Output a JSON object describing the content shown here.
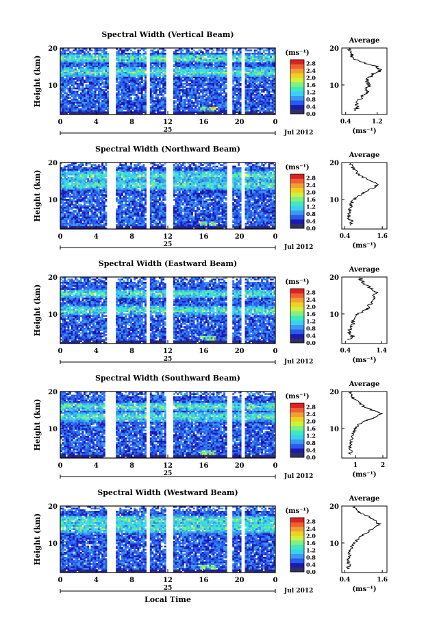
{
  "footer": {
    "xlabel": "Local Time"
  },
  "colorbar": {
    "unit": "(ms⁻¹)",
    "ticks": [
      "0.0",
      "0.4",
      "0.8",
      "1.2",
      "1.6",
      "2.0",
      "2.4",
      "2.8"
    ],
    "range": [
      0.0,
      3.0
    ],
    "colors": [
      "#303060",
      "#1a1ab0",
      "#2a5af0",
      "#3a9af0",
      "#3ad0f0",
      "#40e8c0",
      "#80f080",
      "#d0f040",
      "#f0d020",
      "#f0a030",
      "#f06030",
      "#e02020"
    ]
  },
  "chart_data": [
    {
      "type": "heatmap",
      "title": "Spectral Width (Vertical Beam)",
      "ylabel": "Height (km)",
      "yticks": [
        "20",
        "10"
      ],
      "xticks": [
        "0",
        "4",
        "8",
        "12",
        "16",
        "20",
        "0"
      ],
      "date_label": "25",
      "month_label": "Jul 2012",
      "xlim": [
        0,
        24
      ],
      "ylim": [
        2,
        20
      ],
      "data_gaps_hours": [
        [
          5.5,
          6.1
        ],
        [
          9.6,
          10.0
        ],
        [
          11.8,
          12.6
        ],
        [
          18.6,
          19.2
        ],
        [
          20.2,
          20.7
        ]
      ],
      "high_width_layers_km": [
        17.2,
        13.5
      ],
      "average_profile": {
        "title": "Average",
        "xlabel": "(ms⁻¹)",
        "xticks": [
          "0.4",
          "1.2"
        ],
        "xlim": [
          0.3,
          1.45
        ],
        "yticks": [
          "20",
          "10"
        ],
        "heights_km": [
          3,
          4,
          5,
          6,
          7,
          8,
          9,
          10,
          11,
          12,
          13,
          14,
          15,
          16,
          17,
          18,
          19,
          20
        ],
        "values": [
          0.62,
          0.72,
          0.68,
          0.75,
          0.82,
          0.95,
          0.88,
          1.02,
          0.92,
          0.98,
          1.12,
          1.3,
          1.18,
          0.85,
          0.62,
          0.55,
          0.5,
          0.5
        ]
      }
    },
    {
      "type": "heatmap",
      "title": "Spectral Width (Northward Beam)",
      "ylabel": "Height (km)",
      "yticks": [
        "20",
        "10"
      ],
      "xticks": [
        "0",
        "4",
        "8",
        "12",
        "16",
        "20",
        "0"
      ],
      "date_label": "25",
      "month_label": "Jul 2012",
      "xlim": [
        0,
        24
      ],
      "ylim": [
        2,
        20
      ],
      "data_gaps_hours": [
        [
          5.3,
          6.2
        ],
        [
          9.6,
          10.0
        ],
        [
          11.8,
          12.6
        ],
        [
          18.6,
          19.2
        ],
        [
          20.2,
          20.7
        ]
      ],
      "high_width_layers_km": [
        16.5,
        14.0
      ],
      "average_profile": {
        "title": "Average",
        "xlabel": "(ms⁻¹)",
        "xticks": [
          "0.4",
          "1.6"
        ],
        "xlim": [
          0.3,
          1.75
        ],
        "yticks": [
          "20",
          "10"
        ],
        "heights_km": [
          3,
          4,
          5,
          6,
          7,
          8,
          9,
          10,
          11,
          12,
          13,
          14,
          15,
          16,
          17,
          18,
          19,
          20
        ],
        "values": [
          0.55,
          0.65,
          0.5,
          0.52,
          0.55,
          0.58,
          0.62,
          0.7,
          0.85,
          1.05,
          1.3,
          1.45,
          1.25,
          1.0,
          0.82,
          0.72,
          0.62,
          0.6
        ]
      }
    },
    {
      "type": "heatmap",
      "title": "Spectral Width (Eastward Beam)",
      "ylabel": "Height (km)",
      "yticks": [
        "20",
        "10"
      ],
      "xticks": [
        "0",
        "4",
        "8",
        "12",
        "16",
        "20",
        "0"
      ],
      "date_label": "25",
      "month_label": "Jul 2012",
      "xlim": [
        0,
        24
      ],
      "ylim": [
        2,
        20
      ],
      "data_gaps_hours": [
        [
          5.3,
          6.1
        ],
        [
          9.6,
          10.0
        ],
        [
          11.8,
          12.6
        ],
        [
          18.6,
          19.2
        ],
        [
          20.2,
          20.7
        ]
      ],
      "high_width_layers_km": [
        15.5,
        11.0
      ],
      "average_profile": {
        "title": "Average",
        "xlabel": "(ms⁻¹)",
        "xticks": [
          "0.4",
          "1.4"
        ],
        "xlim": [
          0.3,
          1.55
        ],
        "yticks": [
          "20",
          "10"
        ],
        "heights_km": [
          3,
          4,
          5,
          6,
          7,
          8,
          9,
          10,
          11,
          12,
          13,
          14,
          15,
          16,
          17,
          18,
          19,
          20
        ],
        "values": [
          0.5,
          0.6,
          0.5,
          0.55,
          0.6,
          0.62,
          0.68,
          0.72,
          0.95,
          1.05,
          1.1,
          1.2,
          1.15,
          1.25,
          1.1,
          0.95,
          0.85,
          0.8
        ]
      }
    },
    {
      "type": "heatmap",
      "title": "Spectral Width (Southward Beam)",
      "ylabel": "Height (km)",
      "yticks": [
        "20",
        "10"
      ],
      "xticks": [
        "0",
        "4",
        "8",
        "12",
        "16",
        "20",
        "0"
      ],
      "date_label": "25",
      "month_label": "Jul 2012",
      "xlim": [
        0,
        24
      ],
      "ylim": [
        2,
        20
      ],
      "data_gaps_hours": [
        [
          5.0,
          6.2
        ],
        [
          9.6,
          10.0
        ],
        [
          11.8,
          12.6
        ],
        [
          18.6,
          19.2
        ],
        [
          20.2,
          20.7
        ]
      ],
      "high_width_layers_km": [
        16.0,
        13.2
      ],
      "average_profile": {
        "title": "Average",
        "xlabel": "(ms⁻¹)",
        "xticks": [
          "1",
          "2"
        ],
        "xlim": [
          0.5,
          2.15
        ],
        "yticks": [
          "20",
          "10"
        ],
        "heights_km": [
          3,
          4,
          5,
          6,
          7,
          8,
          9,
          10,
          11,
          12,
          13,
          14,
          15,
          16,
          17,
          18,
          19,
          20
        ],
        "values": [
          0.78,
          0.85,
          0.8,
          0.82,
          0.85,
          0.88,
          0.95,
          1.0,
          1.1,
          1.35,
          1.7,
          1.95,
          1.6,
          1.3,
          1.15,
          0.95,
          0.85,
          0.8
        ]
      }
    },
    {
      "type": "heatmap",
      "title": "Spectral Width (Westward Beam)",
      "ylabel": "Height (km)",
      "yticks": [
        "20",
        "10"
      ],
      "xticks": [
        "0",
        "4",
        "8",
        "12",
        "16",
        "20",
        "0"
      ],
      "date_label": "25",
      "month_label": "Jul 2012",
      "xlim": [
        0,
        24
      ],
      "ylim": [
        2,
        20
      ],
      "data_gaps_hours": [
        [
          5.3,
          6.1
        ],
        [
          9.6,
          10.0
        ],
        [
          11.8,
          12.6
        ],
        [
          18.6,
          19.2
        ],
        [
          20.2,
          20.7
        ]
      ],
      "high_width_layers_km": [
        16.2,
        14.0
      ],
      "average_profile": {
        "title": "Average",
        "xlabel": "(ms⁻¹)",
        "xticks": [
          "0.4",
          "1.6"
        ],
        "xlim": [
          0.3,
          1.75
        ],
        "yticks": [
          "20",
          "10"
        ],
        "heights_km": [
          3,
          4,
          5,
          6,
          7,
          8,
          9,
          10,
          11,
          12,
          13,
          14,
          15,
          16,
          17,
          18,
          19,
          20
        ],
        "values": [
          0.5,
          0.55,
          0.5,
          0.52,
          0.55,
          0.58,
          0.62,
          0.7,
          0.82,
          0.95,
          1.15,
          1.35,
          1.5,
          1.4,
          1.2,
          0.9,
          0.75,
          0.7
        ]
      }
    }
  ]
}
